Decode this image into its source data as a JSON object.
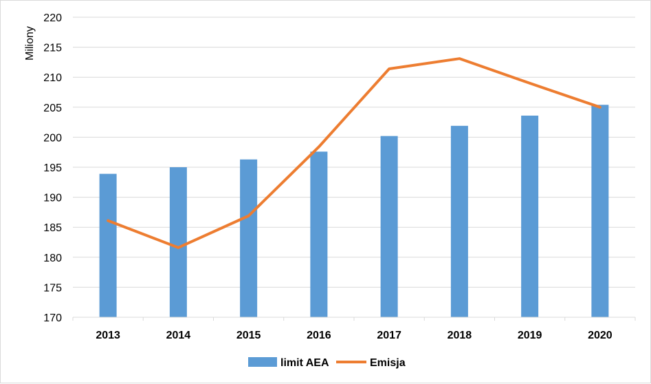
{
  "chart_data": {
    "type": "bar",
    "ylabel": "Miliony",
    "xlabel": "",
    "ylim": [
      170,
      220
    ],
    "ytick_step": 5,
    "grid": true,
    "legend_position": "bottom",
    "categories": [
      "2013",
      "2014",
      "2015",
      "2016",
      "2017",
      "2018",
      "2019",
      "2020"
    ],
    "series": [
      {
        "name": "limit AEA",
        "type": "bar",
        "color": "#5b9bd5",
        "values": [
          193.9,
          195.0,
          196.3,
          197.6,
          200.2,
          201.9,
          203.6,
          205.4
        ]
      },
      {
        "name": "Emisja",
        "type": "line",
        "color": "#ed7d31",
        "values": [
          186.1,
          181.6,
          186.9,
          198.4,
          211.4,
          213.1,
          209.0,
          205.0
        ]
      }
    ]
  }
}
